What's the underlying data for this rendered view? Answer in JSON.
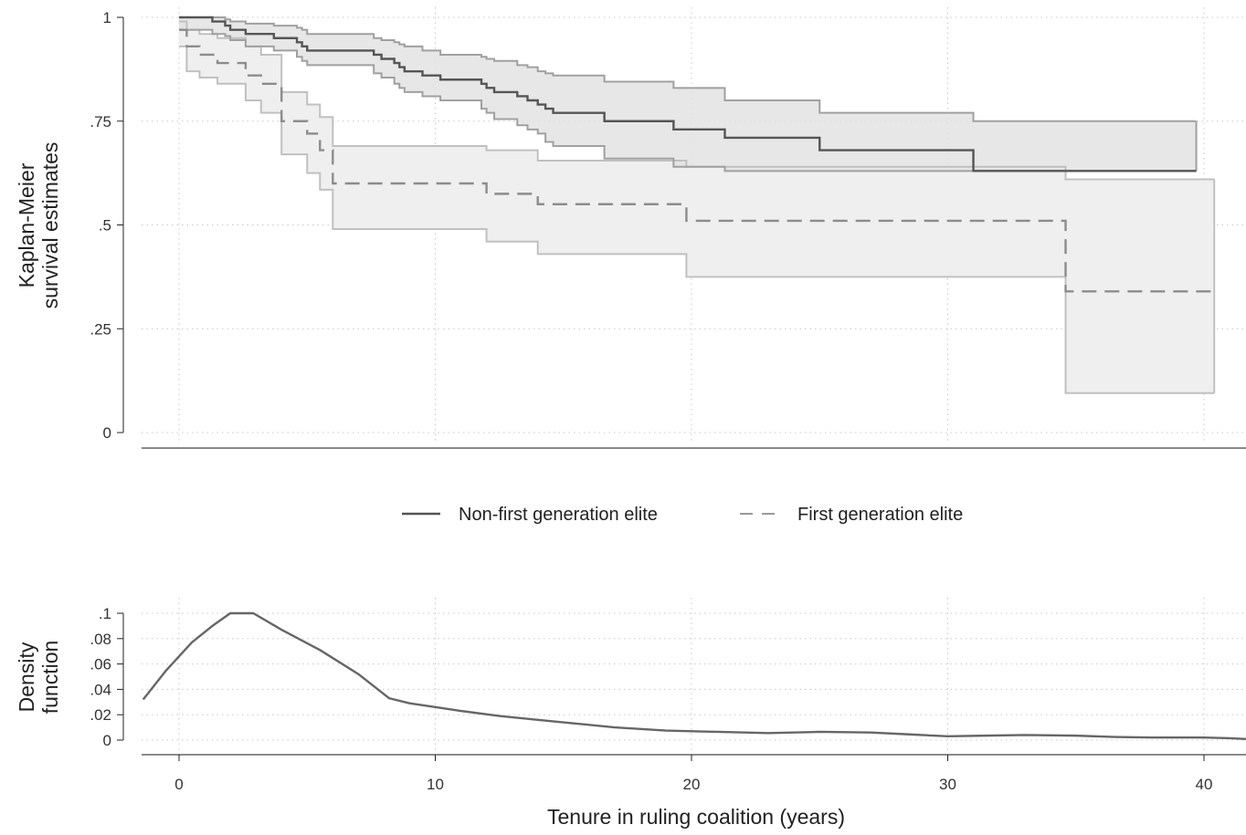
{
  "chart_data": [
    {
      "type": "line",
      "ylabel_lines": [
        "Kaplan-Meier",
        "survival estimates"
      ],
      "y_ticks": [
        0,
        0.25,
        0.5,
        0.75,
        1
      ],
      "y_tick_labels": [
        "0",
        ".25",
        ".5",
        ".75",
        "1"
      ],
      "ylim": [
        0,
        1
      ],
      "xlim": [
        -1.4,
        42
      ],
      "grid": true,
      "legend_position": "bottom",
      "series": [
        {
          "name": "Non-first generation elite",
          "style": "solid",
          "color": "#555555",
          "points": [
            [
              0,
              1
            ],
            [
              1.3,
              0.99
            ],
            [
              1.8,
              0.98
            ],
            [
              2,
              0.97
            ],
            [
              2.6,
              0.96
            ],
            [
              3.7,
              0.95
            ],
            [
              4.6,
              0.94
            ],
            [
              4.8,
              0.93
            ],
            [
              5,
              0.92
            ],
            [
              7.6,
              0.91
            ],
            [
              7.9,
              0.9
            ],
            [
              8.4,
              0.89
            ],
            [
              8.6,
              0.88
            ],
            [
              8.8,
              0.87
            ],
            [
              9.5,
              0.86
            ],
            [
              10.2,
              0.85
            ],
            [
              11.8,
              0.84
            ],
            [
              12,
              0.83
            ],
            [
              12.3,
              0.82
            ],
            [
              13.2,
              0.81
            ],
            [
              13.6,
              0.8
            ],
            [
              14,
              0.79
            ],
            [
              14.3,
              0.78
            ],
            [
              14.6,
              0.77
            ],
            [
              16.6,
              0.75
            ],
            [
              19.3,
              0.73
            ],
            [
              21.3,
              0.71
            ],
            [
              25,
              0.68
            ],
            [
              31,
              0.63
            ],
            [
              39.7,
              0.63
            ]
          ],
          "ci_upper": [
            [
              0,
              1
            ],
            [
              1.3,
              1
            ],
            [
              1.8,
              0.995
            ],
            [
              2,
              0.99
            ],
            [
              2.6,
              0.985
            ],
            [
              3.7,
              0.98
            ],
            [
              4.6,
              0.975
            ],
            [
              4.8,
              0.97
            ],
            [
              5,
              0.96
            ],
            [
              7.6,
              0.95
            ],
            [
              7.9,
              0.945
            ],
            [
              8.4,
              0.94
            ],
            [
              8.6,
              0.935
            ],
            [
              8.8,
              0.93
            ],
            [
              9.5,
              0.92
            ],
            [
              10.2,
              0.91
            ],
            [
              11.8,
              0.905
            ],
            [
              12,
              0.9
            ],
            [
              12.3,
              0.895
            ],
            [
              13.2,
              0.885
            ],
            [
              13.6,
              0.88
            ],
            [
              14,
              0.87
            ],
            [
              14.3,
              0.865
            ],
            [
              14.6,
              0.86
            ],
            [
              16.6,
              0.845
            ],
            [
              19.3,
              0.83
            ],
            [
              21.3,
              0.8
            ],
            [
              25,
              0.77
            ],
            [
              31,
              0.75
            ],
            [
              39.7,
              0.75
            ]
          ],
          "ci_lower": [
            [
              0,
              0.97
            ],
            [
              1.3,
              0.96
            ],
            [
              1.8,
              0.955
            ],
            [
              2,
              0.945
            ],
            [
              2.6,
              0.93
            ],
            [
              3.7,
              0.92
            ],
            [
              4.6,
              0.905
            ],
            [
              4.8,
              0.895
            ],
            [
              5,
              0.885
            ],
            [
              7.6,
              0.865
            ],
            [
              7.9,
              0.855
            ],
            [
              8.4,
              0.84
            ],
            [
              8.6,
              0.83
            ],
            [
              8.8,
              0.82
            ],
            [
              9.5,
              0.81
            ],
            [
              10.2,
              0.8
            ],
            [
              11.8,
              0.78
            ],
            [
              12,
              0.77
            ],
            [
              12.3,
              0.755
            ],
            [
              13.2,
              0.74
            ],
            [
              13.6,
              0.73
            ],
            [
              14,
              0.72
            ],
            [
              14.3,
              0.7
            ],
            [
              14.6,
              0.69
            ],
            [
              16.6,
              0.66
            ],
            [
              19.3,
              0.64
            ],
            [
              21.3,
              0.63
            ],
            [
              25,
              0.63
            ],
            [
              31,
              0.63
            ],
            [
              39.7,
              0.63
            ]
          ]
        },
        {
          "name": "First generation elite",
          "style": "dashed",
          "color": "#8c8c8c",
          "points": [
            [
              0,
              0.97
            ],
            [
              0.3,
              0.93
            ],
            [
              0.8,
              0.91
            ],
            [
              1.5,
              0.89
            ],
            [
              2.6,
              0.86
            ],
            [
              3.2,
              0.84
            ],
            [
              4,
              0.75
            ],
            [
              5,
              0.72
            ],
            [
              5.5,
              0.68
            ],
            [
              6,
              0.6
            ],
            [
              12,
              0.575
            ],
            [
              14,
              0.55
            ],
            [
              19.8,
              0.51
            ],
            [
              34.6,
              0.34
            ],
            [
              40.4,
              0.34
            ]
          ],
          "ci_upper": [
            [
              0,
              0.99
            ],
            [
              0.3,
              0.97
            ],
            [
              0.8,
              0.96
            ],
            [
              1.5,
              0.95
            ],
            [
              2.6,
              0.93
            ],
            [
              3.2,
              0.91
            ],
            [
              4,
              0.82
            ],
            [
              5,
              0.79
            ],
            [
              5.5,
              0.76
            ],
            [
              6,
              0.69
            ],
            [
              12,
              0.68
            ],
            [
              14,
              0.655
            ],
            [
              19.8,
              0.64
            ],
            [
              34.6,
              0.61
            ],
            [
              40.4,
              0.61
            ]
          ],
          "ci_lower": [
            [
              0,
              0.93
            ],
            [
              0.3,
              0.87
            ],
            [
              0.8,
              0.855
            ],
            [
              1.5,
              0.84
            ],
            [
              2.6,
              0.8
            ],
            [
              3.2,
              0.77
            ],
            [
              4,
              0.67
            ],
            [
              5,
              0.625
            ],
            [
              5.5,
              0.585
            ],
            [
              6,
              0.49
            ],
            [
              12,
              0.46
            ],
            [
              14,
              0.43
            ],
            [
              19.8,
              0.375
            ],
            [
              34.6,
              0.095
            ],
            [
              40.4,
              0.095
            ]
          ]
        }
      ]
    },
    {
      "type": "line",
      "ylabel_lines": [
        "Density",
        "function"
      ],
      "xlabel": "Tenure in ruling coalition (years)",
      "x_ticks": [
        0,
        10,
        20,
        30,
        40
      ],
      "x_tick_labels": [
        "0",
        "10",
        "20",
        "30",
        "40"
      ],
      "y_ticks": [
        0,
        0.02,
        0.04,
        0.06,
        0.08,
        0.1
      ],
      "y_tick_labels": [
        "0",
        ".02",
        ".04",
        ".06",
        ".08",
        ".1"
      ],
      "ylim": [
        0,
        0.1
      ],
      "xlim": [
        -1.4,
        42
      ],
      "grid": true,
      "series": [
        {
          "color": "#666666",
          "points": [
            [
              -1.4,
              0.032
            ],
            [
              -0.5,
              0.055
            ],
            [
              0.5,
              0.077
            ],
            [
              1.3,
              0.09
            ],
            [
              2,
              0.1
            ],
            [
              2.9,
              0.1
            ],
            [
              4,
              0.087
            ],
            [
              5.5,
              0.071
            ],
            [
              7,
              0.052
            ],
            [
              8.2,
              0.033
            ],
            [
              9,
              0.029
            ],
            [
              10,
              0.026
            ],
            [
              11,
              0.023
            ],
            [
              12.5,
              0.019
            ],
            [
              14,
              0.016
            ],
            [
              15.5,
              0.013
            ],
            [
              17,
              0.01
            ],
            [
              19,
              0.0075
            ],
            [
              21,
              0.0065
            ],
            [
              23,
              0.0055
            ],
            [
              25,
              0.0065
            ],
            [
              27,
              0.006
            ],
            [
              28.5,
              0.0045
            ],
            [
              30,
              0.003
            ],
            [
              31.5,
              0.0035
            ],
            [
              33,
              0.004
            ],
            [
              35,
              0.0035
            ],
            [
              36.5,
              0.0025
            ],
            [
              38,
              0.002
            ],
            [
              40,
              0.002
            ],
            [
              41,
              0.0015
            ],
            [
              42,
              0.0005
            ]
          ]
        }
      ]
    }
  ],
  "legend": {
    "items": [
      {
        "label": "Non-first generation elite",
        "style": "solid",
        "color": "#555555"
      },
      {
        "label": "First generation elite",
        "style": "dashed",
        "color": "#8c8c8c"
      }
    ]
  }
}
